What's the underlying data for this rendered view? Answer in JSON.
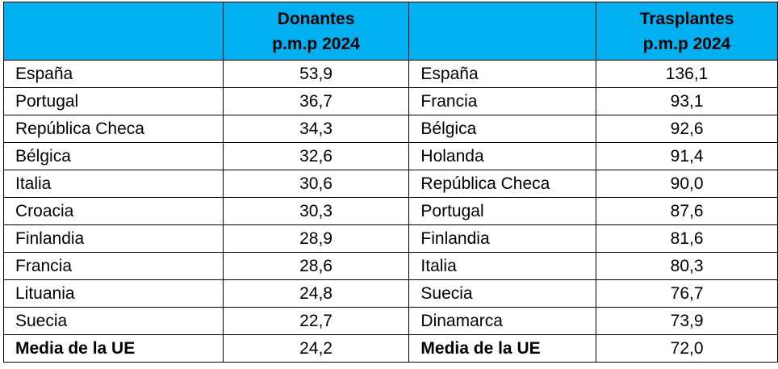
{
  "header": {
    "donantes_line1": "Donantes",
    "donantes_line2": "p.m.p 2024",
    "trasplantes_line1": "Trasplantes",
    "trasplantes_line2": "p.m.p 2024"
  },
  "rows": [
    {
      "d_country": "España",
      "d_value": "53,9",
      "t_country": "España",
      "t_value": "136,1"
    },
    {
      "d_country": "Portugal",
      "d_value": "36,7",
      "t_country": "Francia",
      "t_value": "93,1"
    },
    {
      "d_country": "República Checa",
      "d_value": "34,3",
      "t_country": "Bélgica",
      "t_value": "92,6"
    },
    {
      "d_country": "Bélgica",
      "d_value": "32,6",
      "t_country": "Holanda",
      "t_value": "91,4"
    },
    {
      "d_country": "Italia",
      "d_value": "30,6",
      "t_country": "República Checa",
      "t_value": "90,0"
    },
    {
      "d_country": "Croacia",
      "d_value": "30,3",
      "t_country": "Portugal",
      "t_value": "87,6"
    },
    {
      "d_country": "Finlandia",
      "d_value": "28,9",
      "t_country": "Finlandia",
      "t_value": "81,6"
    },
    {
      "d_country": "Francia",
      "d_value": "28,6",
      "t_country": "Italia",
      "t_value": "80,3"
    },
    {
      "d_country": "Lituania",
      "d_value": "24,8",
      "t_country": "Suecia",
      "t_value": "76,7"
    },
    {
      "d_country": "Suecia",
      "d_value": "22,7",
      "t_country": "Dinamarca",
      "t_value": "73,9"
    }
  ],
  "average": {
    "d_label": "Media de la UE",
    "d_value": "24,2",
    "t_label": "Media de la UE",
    "t_value": "72,0"
  },
  "colors": {
    "header_bg": "#00b0f0"
  }
}
